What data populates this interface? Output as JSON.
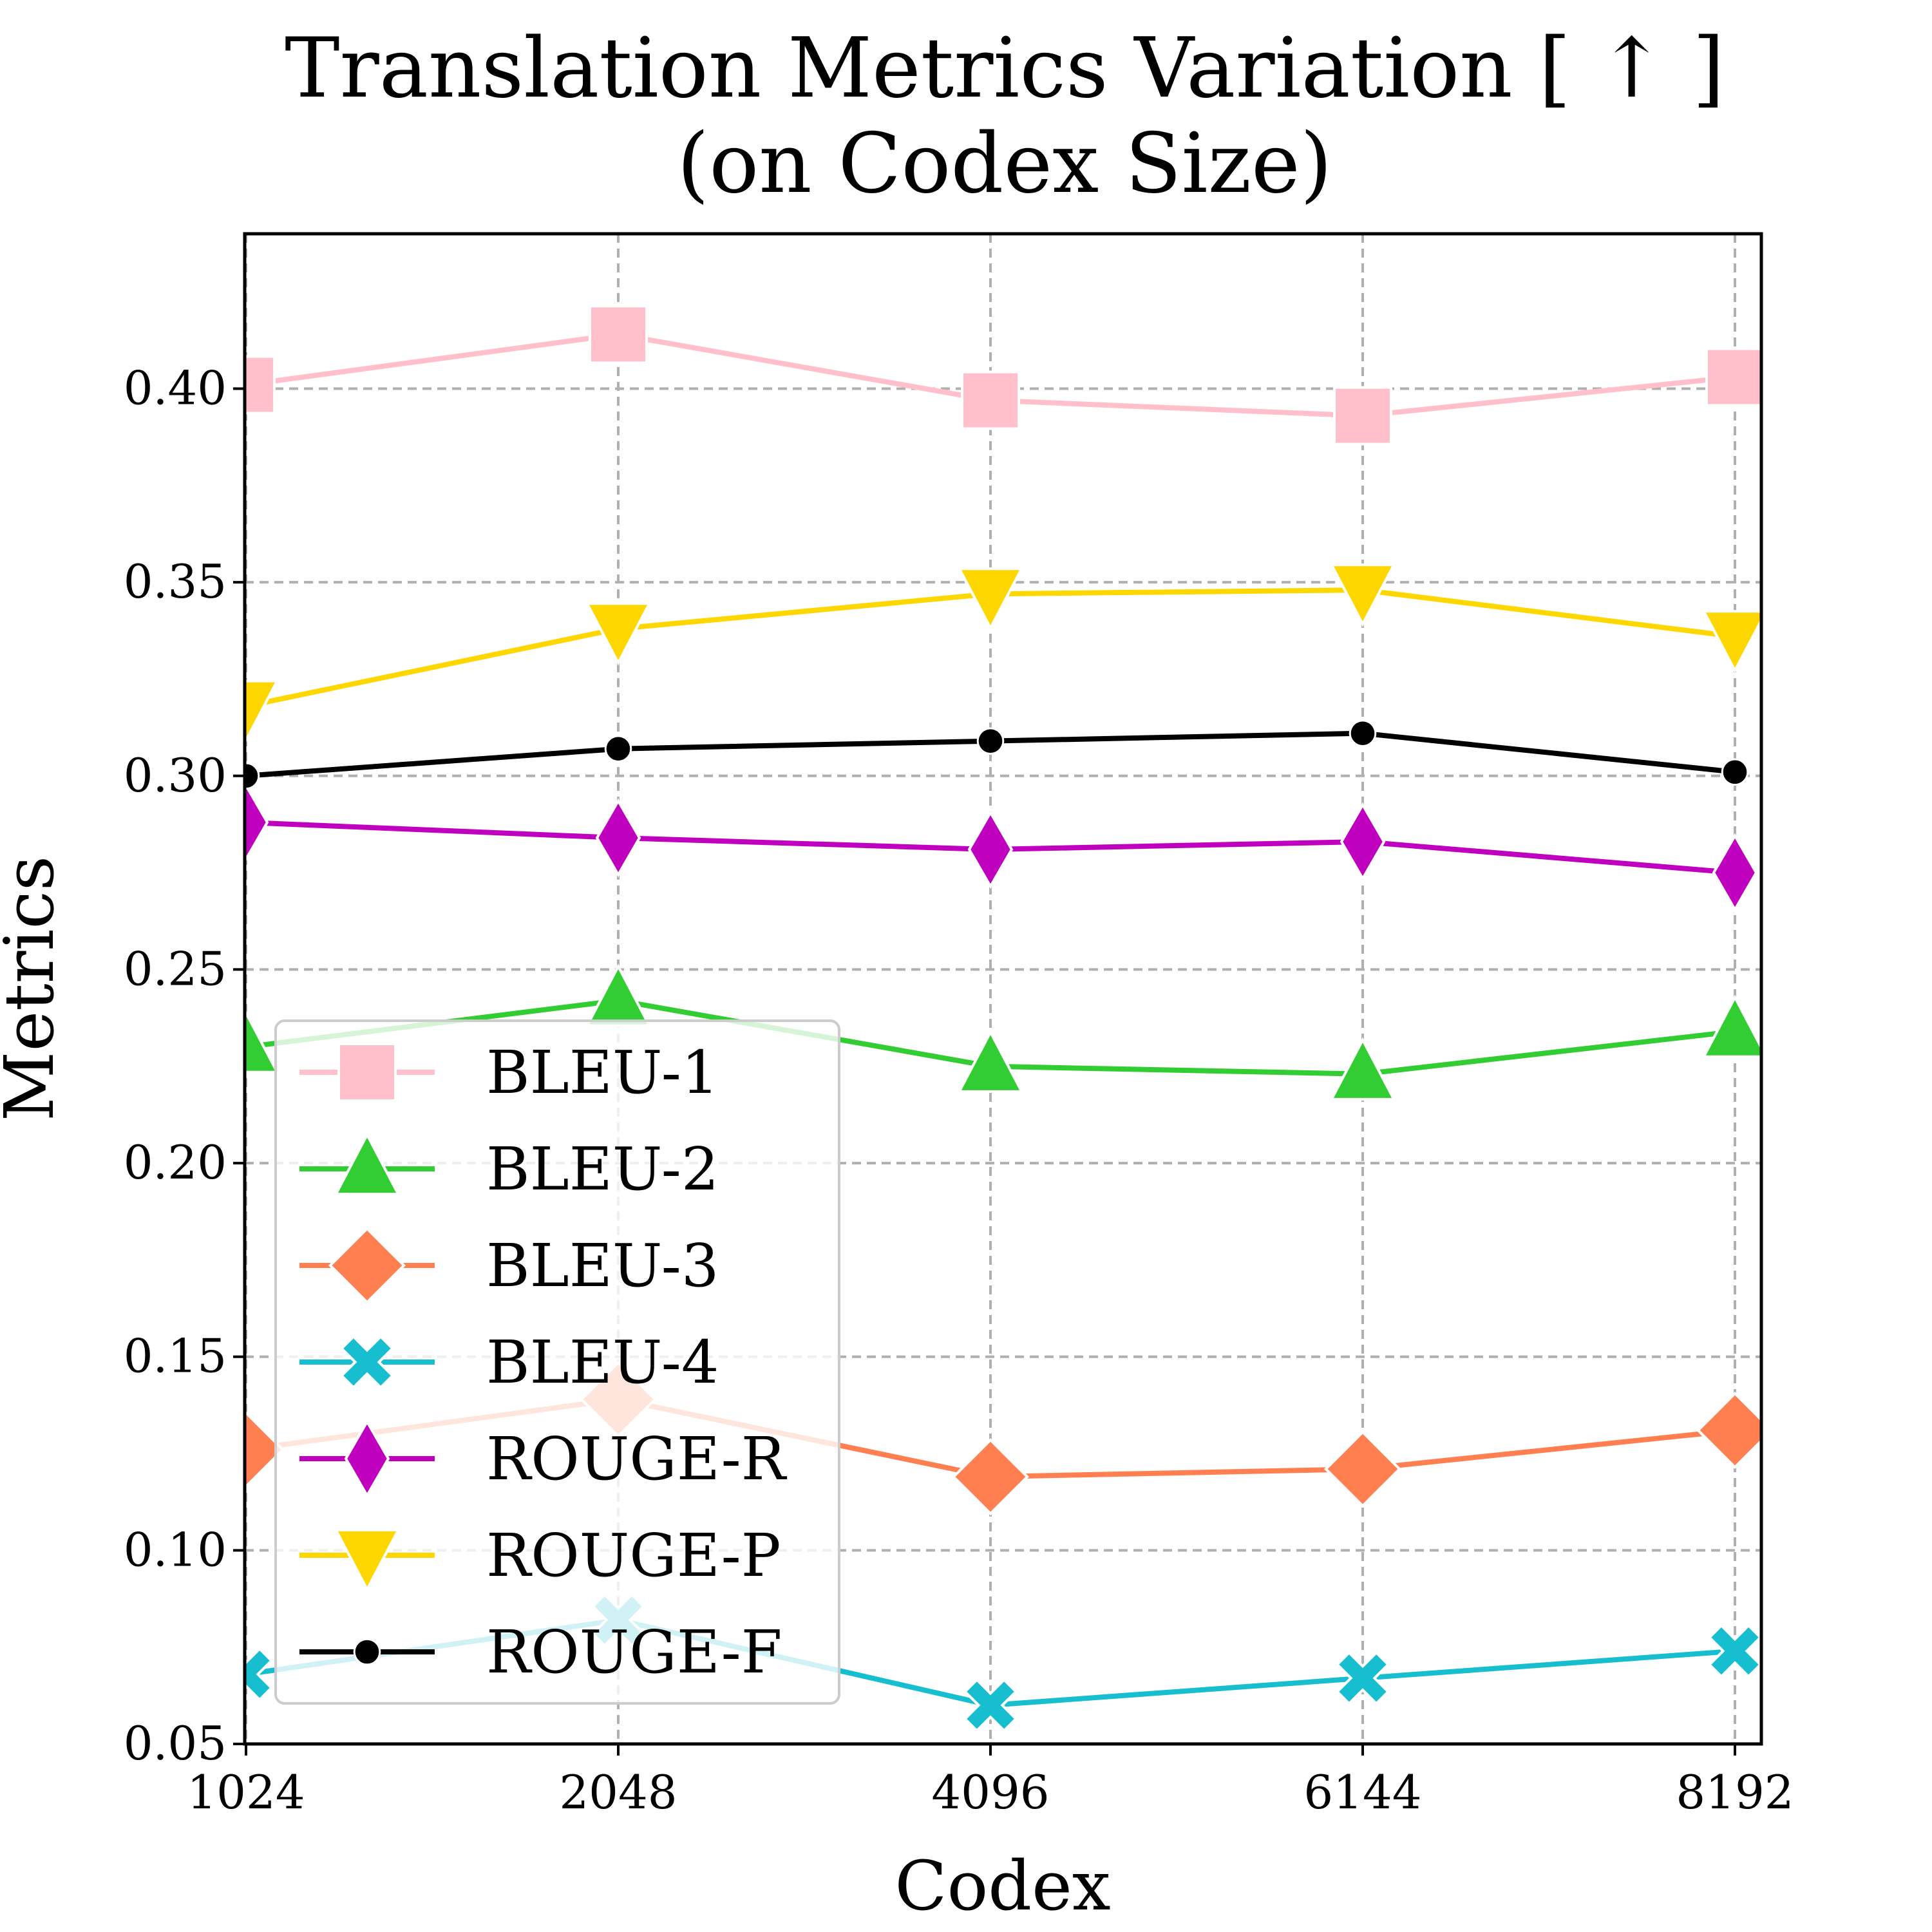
{
  "title_line1": "Translation Metrics Variation [ ↑ ]",
  "title_line2": "(on Codex Size)",
  "chart_data": {
    "type": "line",
    "title": "Translation Metrics Variation [ ↑ ] (on Codex Size)",
    "xlabel": "Codex",
    "ylabel": "Metrics",
    "categories": [
      "1024",
      "2048",
      "4096",
      "6144",
      "8192"
    ],
    "ylim": [
      0.05,
      0.44
    ],
    "yticks": [
      0.05,
      0.1,
      0.15,
      0.2,
      0.25,
      0.3,
      0.35,
      0.4
    ],
    "ytick_labels": [
      "0.05",
      "0.10",
      "0.15",
      "0.20",
      "0.25",
      "0.30",
      "0.35",
      "0.40"
    ],
    "grid": true,
    "legend_position": "lower-left",
    "series": [
      {
        "name": "BLEU-1",
        "color": "#ffc0cb",
        "marker": "square",
        "values": [
          0.401,
          0.414,
          0.397,
          0.393,
          0.403
        ]
      },
      {
        "name": "BLEU-2",
        "color": "#32cd32",
        "marker": "triangle-up",
        "values": [
          0.23,
          0.242,
          0.225,
          0.223,
          0.234
        ]
      },
      {
        "name": "BLEU-3",
        "color": "#ff7f50",
        "marker": "diamond",
        "values": [
          0.126,
          0.139,
          0.119,
          0.121,
          0.131
        ]
      },
      {
        "name": "BLEU-4",
        "color": "#17becf",
        "marker": "x",
        "values": [
          0.068,
          0.082,
          0.06,
          0.067,
          0.074
        ]
      },
      {
        "name": "ROUGE-R",
        "color": "#bf00bf",
        "marker": "thin-diamond",
        "values": [
          0.288,
          0.284,
          0.281,
          0.283,
          0.275
        ]
      },
      {
        "name": "ROUGE-P",
        "color": "#ffd700",
        "marker": "triangle-down",
        "values": [
          0.318,
          0.338,
          0.347,
          0.348,
          0.336
        ]
      },
      {
        "name": "ROUGE-F",
        "color": "#000000",
        "marker": "circle",
        "values": [
          0.3,
          0.307,
          0.309,
          0.311,
          0.301
        ]
      }
    ]
  }
}
